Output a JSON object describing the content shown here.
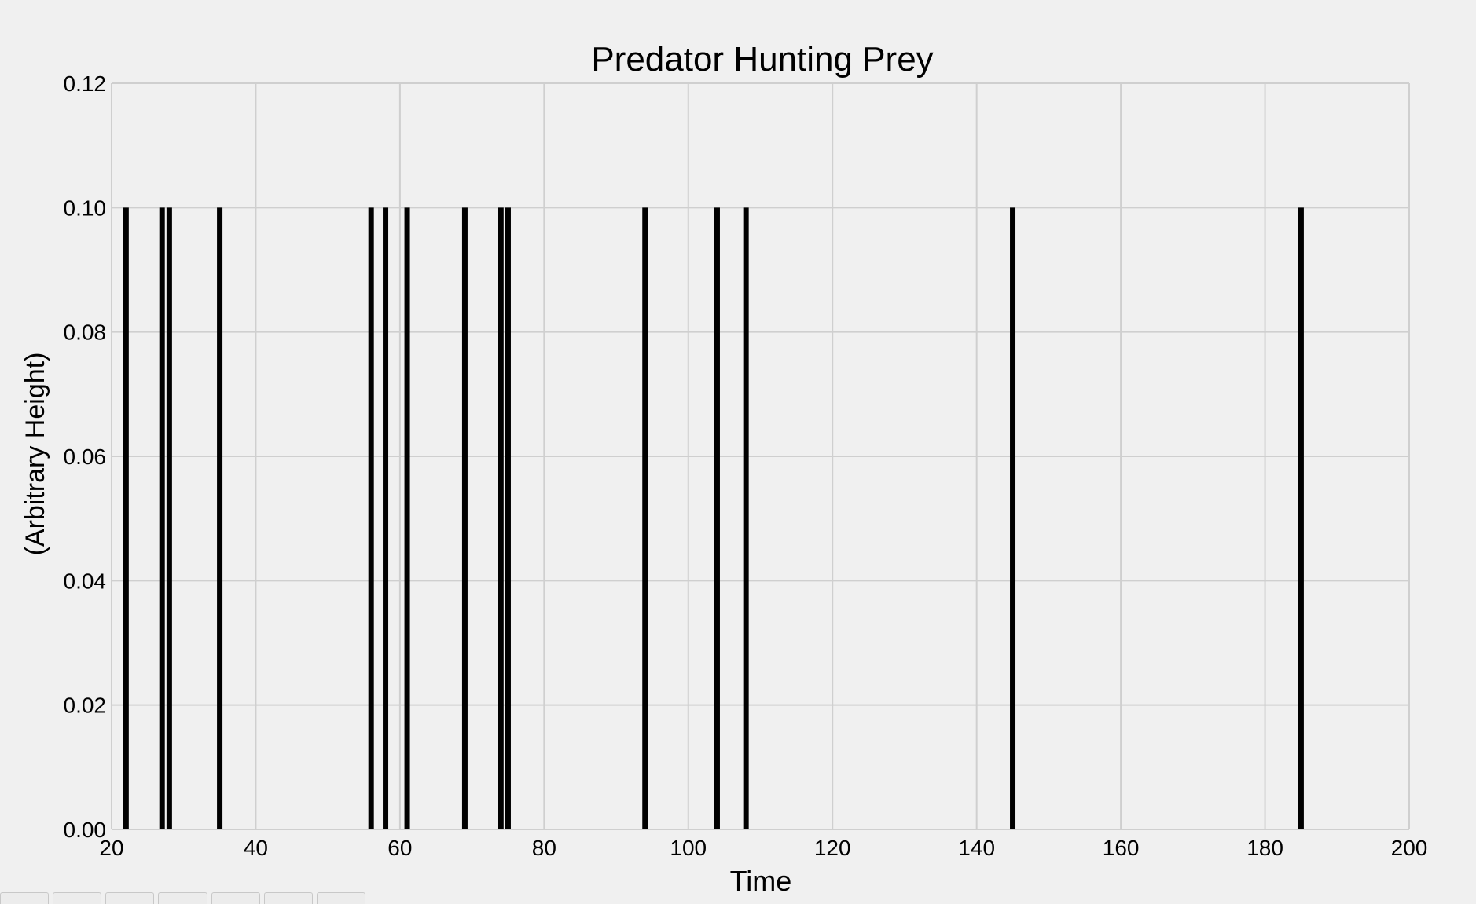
{
  "chart_data": {
    "type": "bar",
    "title": "Predator Hunting Prey",
    "xlabel": "Time",
    "ylabel": "(Arbitrary Height)",
    "xlim": [
      20,
      200
    ],
    "ylim": [
      0,
      0.12
    ],
    "x_ticks": [
      "20",
      "40",
      "60",
      "80",
      "100",
      "120",
      "140",
      "160",
      "180",
      "200"
    ],
    "x_tick_values": [
      20,
      40,
      60,
      80,
      100,
      120,
      140,
      160,
      180,
      200
    ],
    "y_ticks": [
      "0.00",
      "0.02",
      "0.04",
      "0.06",
      "0.08",
      "0.10",
      "0.12"
    ],
    "y_tick_values": [
      0,
      0.02,
      0.04,
      0.06,
      0.08,
      0.1,
      0.12
    ],
    "grid": true,
    "bar_color": "#000000",
    "grid_color": "#cfcfcf",
    "background": "#f0f0f0",
    "x": [
      22,
      27,
      28,
      35,
      56,
      58,
      61,
      69,
      74,
      75,
      94,
      104,
      108,
      145,
      185
    ],
    "values": [
      0.1,
      0.1,
      0.1,
      0.1,
      0.1,
      0.1,
      0.1,
      0.1,
      0.1,
      0.1,
      0.1,
      0.1,
      0.1,
      0.1,
      0.1
    ]
  },
  "toolbar": {
    "buttons": [
      "",
      "",
      "",
      "",
      "",
      "",
      ""
    ]
  }
}
